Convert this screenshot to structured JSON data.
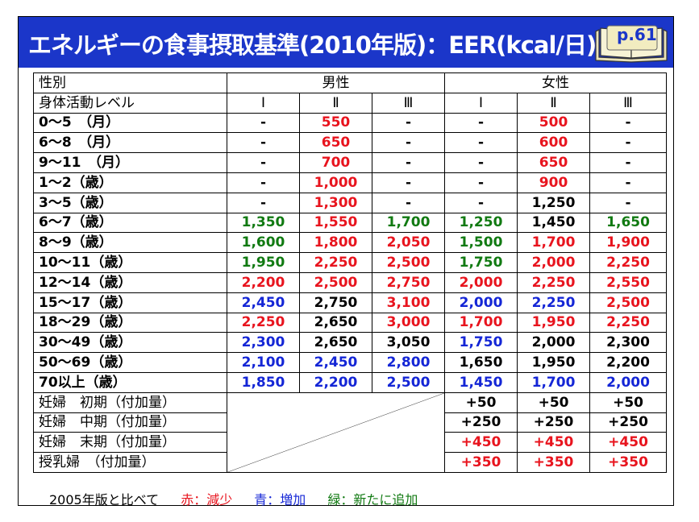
{
  "title": "エネルギーの食事摂取基準(2010年版)：EER(kcal/日)",
  "page_label": "p.61",
  "table": {
    "header_row1": {
      "label": "性別",
      "male": "男性",
      "female": "女性"
    },
    "header_row2": {
      "label": "身体活動レベル",
      "levels": [
        "Ⅰ",
        "Ⅱ",
        "Ⅲ",
        "Ⅰ",
        "Ⅱ",
        "Ⅲ"
      ]
    },
    "rows": [
      {
        "label": "0～5　（月）",
        "cells": [
          [
            "-",
            "black"
          ],
          [
            "550",
            "red"
          ],
          [
            "-",
            "black"
          ],
          [
            "-",
            "black"
          ],
          [
            "500",
            "red"
          ],
          [
            "-",
            "black"
          ]
        ]
      },
      {
        "label": "6～8　（月）",
        "cells": [
          [
            "-",
            "black"
          ],
          [
            "650",
            "red"
          ],
          [
            "-",
            "black"
          ],
          [
            "-",
            "black"
          ],
          [
            "600",
            "red"
          ],
          [
            "-",
            "black"
          ]
        ]
      },
      {
        "label": "9～11　（月）",
        "cells": [
          [
            "-",
            "black"
          ],
          [
            "700",
            "red"
          ],
          [
            "-",
            "black"
          ],
          [
            "-",
            "black"
          ],
          [
            "650",
            "red"
          ],
          [
            "-",
            "black"
          ]
        ]
      },
      {
        "label": "1～2（歳）",
        "cells": [
          [
            "-",
            "black"
          ],
          [
            "1,000",
            "red"
          ],
          [
            "-",
            "black"
          ],
          [
            "-",
            "black"
          ],
          [
            "900",
            "red"
          ],
          [
            "-",
            "black"
          ]
        ]
      },
      {
        "label": "3～5（歳）",
        "cells": [
          [
            "-",
            "black"
          ],
          [
            "1,300",
            "red"
          ],
          [
            "-",
            "black"
          ],
          [
            "-",
            "black"
          ],
          [
            "1,250",
            "black"
          ],
          [
            "-",
            "black"
          ]
        ]
      },
      {
        "label": "6～7（歳）",
        "cells": [
          [
            "1,350",
            "green"
          ],
          [
            "1,550",
            "red"
          ],
          [
            "1,700",
            "green"
          ],
          [
            "1,250",
            "green"
          ],
          [
            "1,450",
            "black"
          ],
          [
            "1,650",
            "green"
          ]
        ]
      },
      {
        "label": "8～9（歳）",
        "cells": [
          [
            "1,600",
            "green"
          ],
          [
            "1,800",
            "red"
          ],
          [
            "2,050",
            "red"
          ],
          [
            "1,500",
            "green"
          ],
          [
            "1,700",
            "red"
          ],
          [
            "1,900",
            "red"
          ]
        ]
      },
      {
        "label": "10～11（歳）",
        "cells": [
          [
            "1,950",
            "green"
          ],
          [
            "2,250",
            "red"
          ],
          [
            "2,500",
            "red"
          ],
          [
            "1,750",
            "green"
          ],
          [
            "2,000",
            "red"
          ],
          [
            "2,250",
            "red"
          ]
        ]
      },
      {
        "label": "12～14（歳）",
        "cells": [
          [
            "2,200",
            "red"
          ],
          [
            "2,500",
            "red"
          ],
          [
            "2,750",
            "red"
          ],
          [
            "2,000",
            "red"
          ],
          [
            "2,250",
            "red"
          ],
          [
            "2,550",
            "red"
          ]
        ]
      },
      {
        "label": "15～17（歳）",
        "cells": [
          [
            "2,450",
            "blue"
          ],
          [
            "2,750",
            "black"
          ],
          [
            "3,100",
            "red"
          ],
          [
            "2,000",
            "blue"
          ],
          [
            "2,250",
            "blue"
          ],
          [
            "2,500",
            "red"
          ]
        ]
      },
      {
        "label": "18～29（歳）",
        "cells": [
          [
            "2,250",
            "red"
          ],
          [
            "2,650",
            "black"
          ],
          [
            "3,000",
            "red"
          ],
          [
            "1,700",
            "red"
          ],
          [
            "1,950",
            "red"
          ],
          [
            "2,250",
            "red"
          ]
        ]
      },
      {
        "label": "30～49（歳）",
        "cells": [
          [
            "2,300",
            "blue"
          ],
          [
            "2,650",
            "black"
          ],
          [
            "3,050",
            "black"
          ],
          [
            "1,750",
            "blue"
          ],
          [
            "2,000",
            "black"
          ],
          [
            "2,300",
            "black"
          ]
        ]
      },
      {
        "label": "50～69（歳）",
        "cells": [
          [
            "2,100",
            "blue"
          ],
          [
            "2,450",
            "blue"
          ],
          [
            "2,800",
            "blue"
          ],
          [
            "1,650",
            "black"
          ],
          [
            "1,950",
            "black"
          ],
          [
            "2,200",
            "black"
          ]
        ]
      },
      {
        "label": "70以上（歳）",
        "cells": [
          [
            "1,850",
            "blue"
          ],
          [
            "2,200",
            "blue"
          ],
          [
            "2,500",
            "blue"
          ],
          [
            "1,450",
            "blue"
          ],
          [
            "1,700",
            "blue"
          ],
          [
            "2,000",
            "blue"
          ]
        ]
      }
    ],
    "pregnancy_rows": [
      {
        "label": "妊婦　初期（付加量）",
        "cells": [
          [
            "+50",
            "black"
          ],
          [
            "+50",
            "black"
          ],
          [
            "+50",
            "black"
          ]
        ]
      },
      {
        "label": "妊婦　中期（付加量）",
        "cells": [
          [
            "+250",
            "black"
          ],
          [
            "+250",
            "black"
          ],
          [
            "+250",
            "black"
          ]
        ]
      },
      {
        "label": "妊婦　末期（付加量）",
        "cells": [
          [
            "+450",
            "red"
          ],
          [
            "+450",
            "red"
          ],
          [
            "+450",
            "red"
          ]
        ]
      },
      {
        "label": "授乳婦　（付加量）",
        "cells": [
          [
            "+350",
            "red"
          ],
          [
            "+350",
            "red"
          ],
          [
            "+350",
            "red"
          ]
        ]
      }
    ]
  },
  "footnote": {
    "main": "2005年版と比べて",
    "red": "赤：減少",
    "blue": "青：増加",
    "green": "緑：新たに追加"
  },
  "colors": {
    "title_bg": "#1b36c9",
    "red": "#e8141e",
    "blue": "#1426d6",
    "green": "#117a12"
  }
}
